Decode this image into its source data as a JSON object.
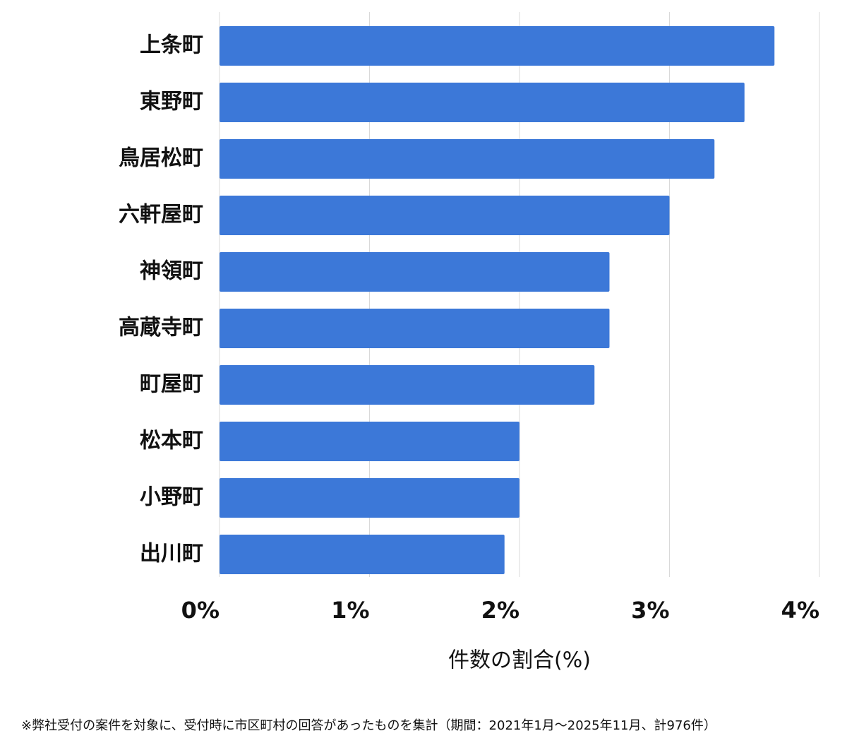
{
  "chart_data": {
    "type": "hbar",
    "categories": [
      "上条町",
      "東野町",
      "鳥居松町",
      "六軒屋町",
      "神領町",
      "高蔵寺町",
      "町屋町",
      "松本町",
      "小野町",
      "出川町"
    ],
    "values": [
      3.7,
      3.5,
      3.3,
      3.0,
      2.6,
      2.6,
      2.5,
      2.0,
      2.0,
      1.9
    ],
    "color": "#3c78d8",
    "xlim": [
      0,
      4
    ],
    "xticks": [
      {
        "value": 0,
        "label": "0%"
      },
      {
        "value": 1,
        "label": "1%"
      },
      {
        "value": 2,
        "label": "2%"
      },
      {
        "value": 3,
        "label": "3%"
      },
      {
        "value": 4,
        "label": "4%"
      }
    ],
    "grid": true,
    "x_label": "件数の割合(%)",
    "note": "※弊社受付の案件を対象に、受付時に市区町村の回答があったものを集計（期間：2021年1月～2025年11月、計976件）"
  }
}
